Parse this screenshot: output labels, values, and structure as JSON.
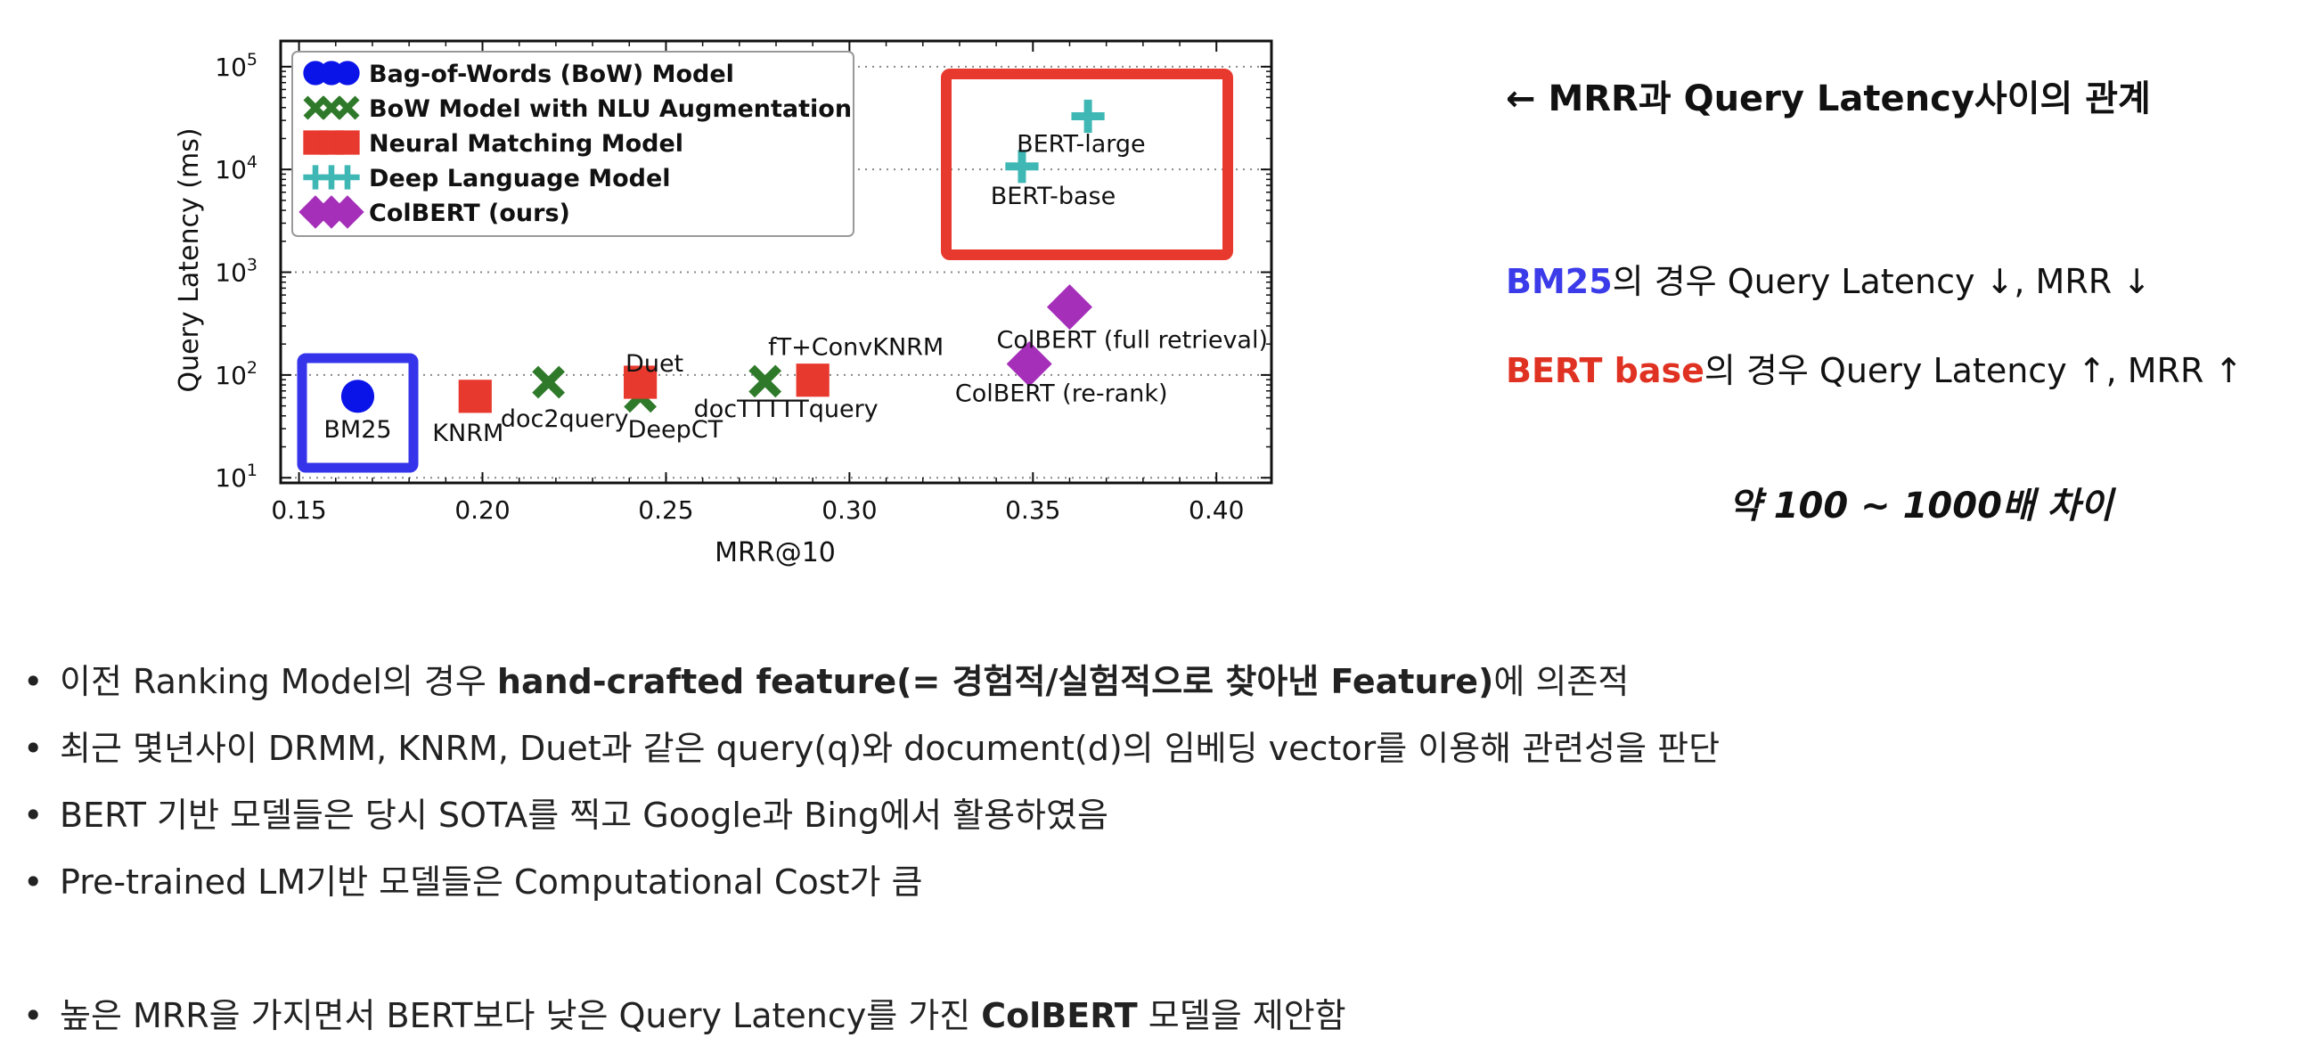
{
  "chart_data": {
    "type": "scatter",
    "xlabel": "MRR@10",
    "ylabel": "Query Latency (ms)",
    "xlim": [
      0.145,
      0.415
    ],
    "ylim_log10": [
      0.95,
      5.25
    ],
    "y_scale": "log",
    "x_ticks": [
      {
        "v": 0.15,
        "label": "0.15"
      },
      {
        "v": 0.2,
        "label": "0.20"
      },
      {
        "v": 0.25,
        "label": "0.25"
      },
      {
        "v": 0.3,
        "label": "0.30"
      },
      {
        "v": 0.35,
        "label": "0.35"
      },
      {
        "v": 0.4,
        "label": "0.40"
      }
    ],
    "y_ticks": [
      {
        "e": 1,
        "base": "10",
        "exp": "1"
      },
      {
        "e": 2,
        "base": "10",
        "exp": "2"
      },
      {
        "e": 3,
        "base": "10",
        "exp": "3"
      },
      {
        "e": 4,
        "base": "10",
        "exp": "4"
      },
      {
        "e": 5,
        "base": "10",
        "exp": "5"
      }
    ],
    "grid": "horizontal dotted",
    "legend_position": "top-left",
    "series": [
      {
        "name": "Bag-of-Words (BoW) Model",
        "marker": "circle",
        "color": "#0a14e8",
        "points": [
          {
            "label": "BM25",
            "x": 0.166,
            "y": 62
          }
        ]
      },
      {
        "name": "BoW Model with NLU Augmentation",
        "marker": "x",
        "color": "#2f7a2a",
        "points": [
          {
            "label": "doc2query",
            "x": 0.218,
            "y": 85
          },
          {
            "label": "DeepCT",
            "x": 0.243,
            "y": 62
          },
          {
            "label": "docTTTTTquery",
            "x": 0.277,
            "y": 87
          }
        ]
      },
      {
        "name": "Neural Matching Model",
        "marker": "square",
        "color": "#e8392e",
        "points": [
          {
            "label": "KNRM",
            "x": 0.198,
            "y": 62
          },
          {
            "label": "Duet",
            "x": 0.243,
            "y": 85
          },
          {
            "label": "fT+ConvKNRM",
            "x": 0.29,
            "y": 89
          }
        ]
      },
      {
        "name": "Deep Language Model",
        "marker": "plus",
        "color": "#3fb8b5",
        "points": [
          {
            "label": "BERT-base",
            "x": 0.347,
            "y": 10700
          },
          {
            "label": "BERT-large",
            "x": 0.365,
            "y": 32900
          }
        ]
      },
      {
        "name": "ColBERT (ours)",
        "marker": "diamond",
        "color": "#a52fb9",
        "points": [
          {
            "label": "ColBERT (re-rank)",
            "x": 0.349,
            "y": 128
          },
          {
            "label": "ColBERT (full retrieval)",
            "x": 0.36,
            "y": 458
          }
        ]
      }
    ],
    "highlights": [
      {
        "target": "BM25",
        "color": "#3534ea"
      },
      {
        "target": "BERT-base / BERT-large",
        "color": "#e8392e"
      }
    ]
  },
  "notes": {
    "relation": "← MRR과 Query Latency사이의 관계",
    "bm25_label": "BM25",
    "bm25_text": "의 경우 Query Latency ↓, MRR ↓",
    "bert_label": "BERT base",
    "bert_text": "의 경우 Query Latency ↑, MRR ↑",
    "difference": "약 100 ~ 1000배 차이"
  },
  "bullets": [
    {
      "parts": [
        {
          "text": "이전 Ranking Model의 경우 ",
          "bold": false
        },
        {
          "text": "hand-crafted feature(= 경험적/실험적으로 찾아낸 Feature)",
          "bold": true
        },
        {
          "text": "에 의존적",
          "bold": false
        }
      ]
    },
    {
      "parts": [
        {
          "text": "최근 몇년사이 DRMM, KNRM, Duet과 같은 query(q)와 document(d)의 임베딩 vector를 이용해 관련성을 판단",
          "bold": false
        }
      ]
    },
    {
      "parts": [
        {
          "text": "BERT 기반 모델들은 당시 SOTA를 찍고 Google과 Bing에서 활용하였음",
          "bold": false
        }
      ]
    },
    {
      "parts": [
        {
          "text": "Pre-trained LM기반 모델들은 Computational Cost가 큼",
          "bold": false
        }
      ]
    },
    {
      "gap": true,
      "parts": [
        {
          "text": "높은 MRR을 가지면서 BERT보다 낮은 Query Latency를 가진 ",
          "bold": false
        },
        {
          "text": "ColBERT",
          "bold": true
        },
        {
          "text": " 모델을 제안함",
          "bold": false
        }
      ]
    }
  ],
  "bullet_char": "•"
}
